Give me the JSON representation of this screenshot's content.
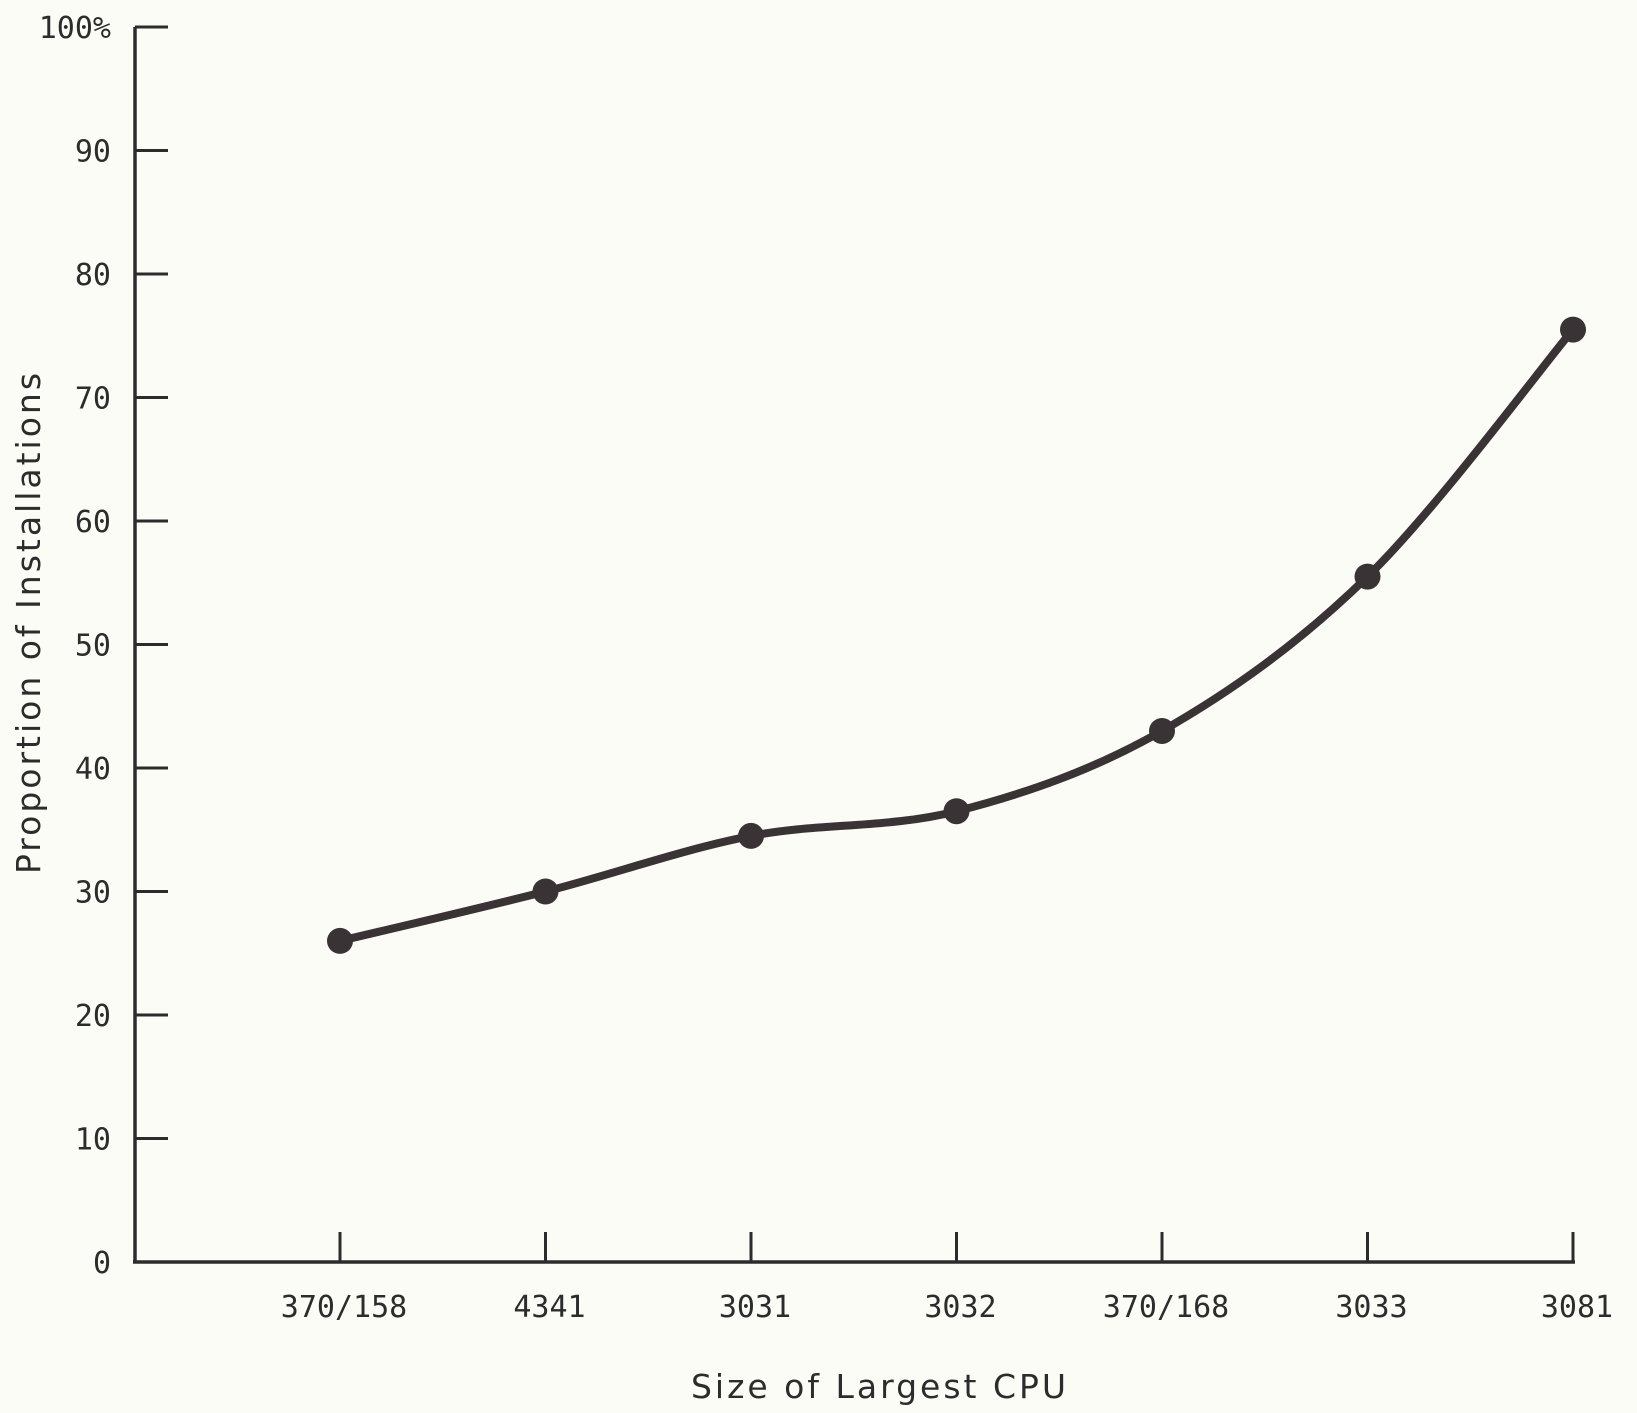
{
  "chart_data": {
    "type": "line",
    "title": "",
    "xlabel": "Size of Largest CPU",
    "ylabel": "Proportion of Installations",
    "categories": [
      "370/158",
      "4341",
      "3031",
      "3032",
      "370/168",
      "3033",
      "3081"
    ],
    "series": [
      {
        "values": [
          26,
          30,
          34.5,
          36.5,
          43,
          55.5,
          75.5
        ]
      }
    ],
    "ylim": [
      0,
      100
    ],
    "y_ticks": [
      0,
      10,
      20,
      30,
      40,
      50,
      60,
      70,
      80,
      90,
      100
    ],
    "y_tick_labels": [
      "0",
      "10",
      "20",
      "30",
      "40",
      "50",
      "60",
      "70",
      "80",
      "90",
      "100%"
    ],
    "grid": false,
    "legend": "none",
    "line_color": "#3a3336",
    "axis_color": "#2c2c2c"
  }
}
